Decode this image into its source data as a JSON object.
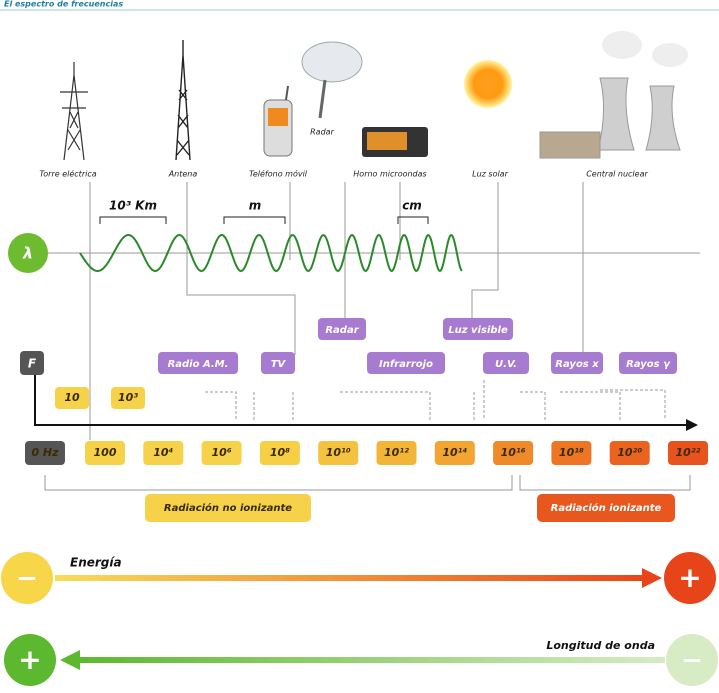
{
  "header": {
    "title": "El espectro de frecuencias"
  },
  "devices": [
    {
      "label": "Torre eléctrica"
    },
    {
      "label": "Antena"
    },
    {
      "label": "Teléfono móvil"
    },
    {
      "label": "Radar"
    },
    {
      "label": "Horno microondas"
    },
    {
      "label": "Luz solar"
    },
    {
      "label": "Central nuclear"
    }
  ],
  "wavelength": {
    "symbol": "λ",
    "scales": [
      "10³ Km",
      "m",
      "cm"
    ]
  },
  "frequency": {
    "symbol": "F",
    "upper_labels": [
      "10",
      "10³"
    ],
    "lower_labels": [
      "0 Hz",
      "100",
      "10⁴",
      "10⁶",
      "10⁸",
      "10¹⁰",
      "10¹²",
      "10¹⁴",
      "10¹⁶",
      "10¹⁸",
      "10²⁰",
      "10²²"
    ]
  },
  "bands": [
    "Radar",
    "Luz visible",
    "Radio A.M.",
    "TV",
    "Infrarrojo",
    "U.V.",
    "Rayos x",
    "Rayos γ"
  ],
  "radiation": {
    "non_ionizing": "Radiación no ionizante",
    "ionizing": "Radiación ionizante"
  },
  "energy": {
    "label": "Energía",
    "low": "−",
    "high": "+"
  },
  "wavelength_axis": {
    "label": "Longitud de onda",
    "high": "+",
    "low": "−"
  }
}
